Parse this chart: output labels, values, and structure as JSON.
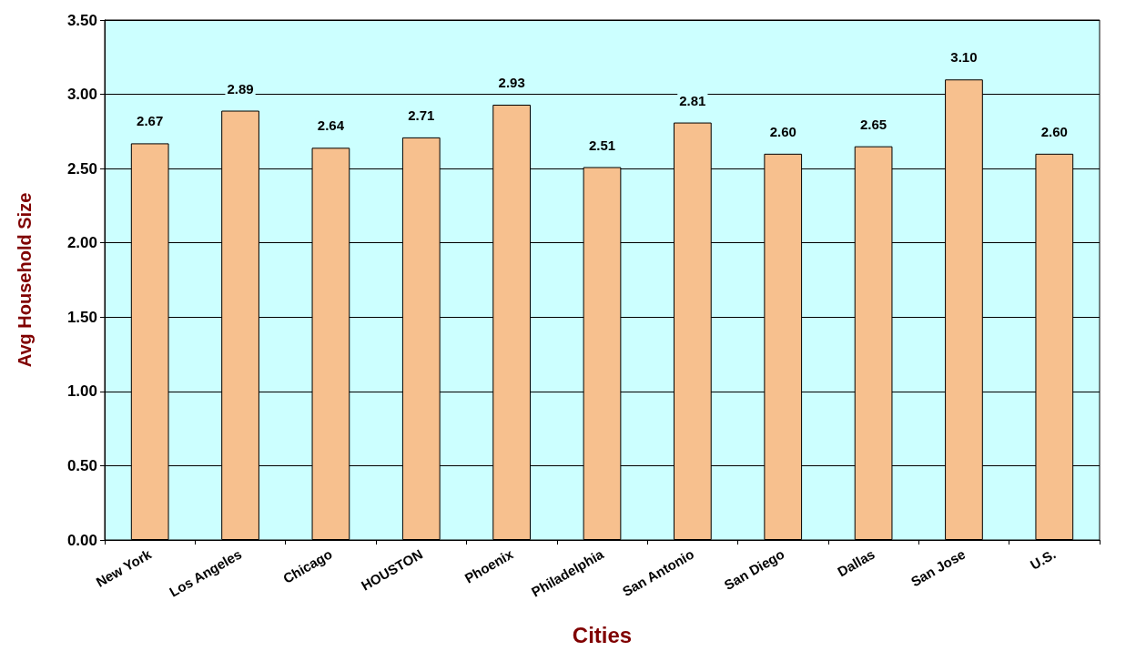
{
  "chart_data": {
    "type": "bar",
    "xlabel": "Cities",
    "ylabel": "Avg Household Size",
    "categories": [
      "New York",
      "Los Angeles",
      "Chicago",
      "HOUSTON",
      "Phoenix",
      "Philadelphia",
      "San Antonio",
      "San Diego",
      "Dallas",
      "San Jose",
      "U.S."
    ],
    "values": [
      2.67,
      2.89,
      2.64,
      2.71,
      2.93,
      2.51,
      2.81,
      2.6,
      2.65,
      3.1,
      2.6
    ],
    "value_labels": [
      "2.67",
      "2.89",
      "2.64",
      "2.71",
      "2.93",
      "2.51",
      "2.81",
      "2.60",
      "2.65",
      "3.10",
      "2.60"
    ],
    "color": "#f7c08e",
    "ylim": [
      0,
      3.5
    ],
    "yticks": [
      {
        "value": 0,
        "label": "0.00"
      },
      {
        "value": 0.5,
        "label": "0.50"
      },
      {
        "value": 1,
        "label": "1.00"
      },
      {
        "value": 1.5,
        "label": "1.50"
      },
      {
        "value": 2,
        "label": "2.00"
      },
      {
        "value": 2.5,
        "label": "2.50"
      },
      {
        "value": 3,
        "label": "3.00"
      },
      {
        "value": 3.5,
        "label": "3.50"
      }
    ],
    "grid": "y"
  }
}
